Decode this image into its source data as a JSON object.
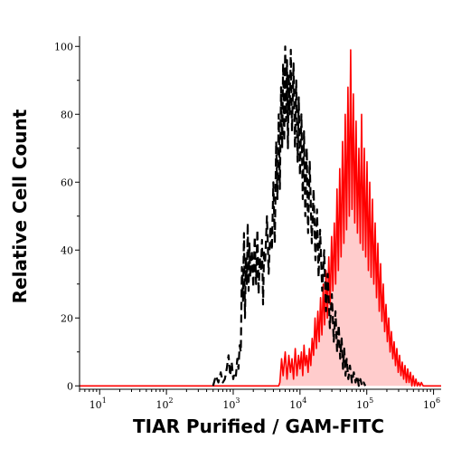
{
  "chart_data": {
    "type": "histogram-overlay",
    "xlabel": "TIAR Purified / GAM-FITC",
    "ylabel": "Relative Cell Count",
    "x_scale": "log",
    "xlim": [
      5,
      1300000
    ],
    "ylim": [
      -1,
      103
    ],
    "y_ticks": [
      0,
      20,
      40,
      60,
      80,
      100
    ],
    "x_ticks": [
      {
        "value": 10,
        "base": "10",
        "exp": "1"
      },
      {
        "value": 100,
        "base": "10",
        "exp": "2"
      },
      {
        "value": 1000,
        "base": "10",
        "exp": "3"
      },
      {
        "value": 10000,
        "base": "10",
        "exp": "4"
      },
      {
        "value": 100000,
        "base": "10",
        "exp": "5"
      },
      {
        "value": 1000000,
        "base": "10",
        "exp": "6"
      }
    ],
    "grid": false,
    "series": [
      {
        "style": "dashed",
        "color": "#000000",
        "fill": "none",
        "points": [
          [
            500,
            0
          ],
          [
            550,
            3
          ],
          [
            600,
            1
          ],
          [
            650,
            4
          ],
          [
            700,
            1
          ],
          [
            750,
            2
          ],
          [
            800,
            5
          ],
          [
            850,
            9
          ],
          [
            900,
            3
          ],
          [
            950,
            7
          ],
          [
            1000,
            2
          ],
          [
            1050,
            4
          ],
          [
            1100,
            3
          ],
          [
            1150,
            8
          ],
          [
            1200,
            5
          ],
          [
            1250,
            12
          ],
          [
            1300,
            10
          ],
          [
            1350,
            35
          ],
          [
            1400,
            25
          ],
          [
            1450,
            45
          ],
          [
            1500,
            20
          ],
          [
            1550,
            38
          ],
          [
            1600,
            30
          ],
          [
            1650,
            48
          ],
          [
            1700,
            28
          ],
          [
            1750,
            42
          ],
          [
            1800,
            32
          ],
          [
            1900,
            40
          ],
          [
            2000,
            29
          ],
          [
            2100,
            44
          ],
          [
            2200,
            30
          ],
          [
            2300,
            46
          ],
          [
            2400,
            27
          ],
          [
            2500,
            38
          ],
          [
            2600,
            34
          ],
          [
            2700,
            43
          ],
          [
            2800,
            24
          ],
          [
            2900,
            40
          ],
          [
            3000,
            36
          ],
          [
            3200,
            50
          ],
          [
            3400,
            33
          ],
          [
            3600,
            47
          ],
          [
            3800,
            40
          ],
          [
            4000,
            60
          ],
          [
            4200,
            42
          ],
          [
            4400,
            72
          ],
          [
            4600,
            55
          ],
          [
            4800,
            80
          ],
          [
            5000,
            58
          ],
          [
            5200,
            88
          ],
          [
            5400,
            70
          ],
          [
            5600,
            95
          ],
          [
            5800,
            72
          ],
          [
            6000,
            100
          ],
          [
            6200,
            78
          ],
          [
            6400,
            96
          ],
          [
            6600,
            70
          ],
          [
            6800,
            92
          ],
          [
            7000,
            80
          ],
          [
            7300,
            99
          ],
          [
            7600,
            75
          ],
          [
            8000,
            95
          ],
          [
            8400,
            70
          ],
          [
            8800,
            90
          ],
          [
            9200,
            66
          ],
          [
            9600,
            85
          ],
          [
            10000,
            62
          ],
          [
            10500,
            80
          ],
          [
            11000,
            55
          ],
          [
            11500,
            75
          ],
          [
            12000,
            50
          ],
          [
            12600,
            70
          ],
          [
            13200,
            45
          ],
          [
            14000,
            66
          ],
          [
            15000,
            42
          ],
          [
            16000,
            58
          ],
          [
            17000,
            37
          ],
          [
            18000,
            52
          ],
          [
            19000,
            32
          ],
          [
            20000,
            46
          ],
          [
            21500,
            28
          ],
          [
            23000,
            40
          ],
          [
            24500,
            22
          ],
          [
            26000,
            33
          ],
          [
            28000,
            17
          ],
          [
            30000,
            27
          ],
          [
            32000,
            13
          ],
          [
            34000,
            22
          ],
          [
            36000,
            10
          ],
          [
            38000,
            18
          ],
          [
            40000,
            8
          ],
          [
            42000,
            14
          ],
          [
            44000,
            5
          ],
          [
            46000,
            11
          ],
          [
            48000,
            3
          ],
          [
            50000,
            8
          ],
          [
            53000,
            2
          ],
          [
            56000,
            6
          ],
          [
            60000,
            1
          ],
          [
            64000,
            4
          ],
          [
            68000,
            1
          ],
          [
            72000,
            3
          ],
          [
            76000,
            0
          ],
          [
            80000,
            2
          ],
          [
            85000,
            0
          ],
          [
            90000,
            1
          ],
          [
            95000,
            0
          ]
        ]
      },
      {
        "style": "solid",
        "color": "#ff0000",
        "fill": "#ffcccc",
        "points": [
          [
            5,
            0
          ],
          [
            4800,
            0
          ],
          [
            5000,
            1
          ],
          [
            5300,
            8
          ],
          [
            5600,
            3
          ],
          [
            6000,
            10
          ],
          [
            6400,
            2
          ],
          [
            6800,
            9
          ],
          [
            7200,
            4
          ],
          [
            7600,
            8
          ],
          [
            8000,
            2
          ],
          [
            8500,
            11
          ],
          [
            9000,
            3
          ],
          [
            9500,
            9
          ],
          [
            10000,
            5
          ],
          [
            10500,
            10
          ],
          [
            11000,
            3
          ],
          [
            11500,
            12
          ],
          [
            12000,
            6
          ],
          [
            12600,
            9
          ],
          [
            13200,
            4
          ],
          [
            13800,
            11
          ],
          [
            14500,
            6
          ],
          [
            15200,
            14
          ],
          [
            16000,
            9
          ],
          [
            16800,
            20
          ],
          [
            17600,
            11
          ],
          [
            18500,
            22
          ],
          [
            19400,
            13
          ],
          [
            20300,
            26
          ],
          [
            21300,
            15
          ],
          [
            22300,
            30
          ],
          [
            23400,
            18
          ],
          [
            24500,
            34
          ],
          [
            25700,
            20
          ],
          [
            27000,
            38
          ],
          [
            28300,
            24
          ],
          [
            29700,
            44
          ],
          [
            31100,
            28
          ],
          [
            32600,
            48
          ],
          [
            34200,
            30
          ],
          [
            35900,
            58
          ],
          [
            37600,
            34
          ],
          [
            39400,
            64
          ],
          [
            41300,
            38
          ],
          [
            43300,
            72
          ],
          [
            45400,
            42
          ],
          [
            47600,
            80
          ],
          [
            49900,
            46
          ],
          [
            52300,
            88
          ],
          [
            54800,
            50
          ],
          [
            57400,
            99
          ],
          [
            60200,
            52
          ],
          [
            63100,
            86
          ],
          [
            66100,
            48
          ],
          [
            69300,
            78
          ],
          [
            72600,
            45
          ],
          [
            76100,
            70
          ],
          [
            79800,
            42
          ],
          [
            83600,
            80
          ],
          [
            87600,
            40
          ],
          [
            91800,
            70
          ],
          [
            96200,
            38
          ],
          [
            100800,
            66
          ],
          [
            105600,
            34
          ],
          [
            110700,
            60
          ],
          [
            116000,
            32
          ],
          [
            121600,
            55
          ],
          [
            127400,
            30
          ],
          [
            133500,
            48
          ],
          [
            139900,
            26
          ],
          [
            146600,
            42
          ],
          [
            153600,
            22
          ],
          [
            161000,
            36
          ],
          [
            168700,
            19
          ],
          [
            176800,
            30
          ],
          [
            185300,
            16
          ],
          [
            194200,
            24
          ],
          [
            203500,
            13
          ],
          [
            213300,
            20
          ],
          [
            223500,
            10
          ],
          [
            234200,
            16
          ],
          [
            245400,
            8
          ],
          [
            257200,
            13
          ],
          [
            269500,
            6
          ],
          [
            282400,
            11
          ],
          [
            296000,
            4
          ],
          [
            310200,
            9
          ],
          [
            325000,
            3
          ],
          [
            340600,
            7
          ],
          [
            357000,
            2
          ],
          [
            374100,
            6
          ],
          [
            392000,
            1
          ],
          [
            410800,
            5
          ],
          [
            430500,
            1
          ],
          [
            451200,
            4
          ],
          [
            472800,
            0
          ],
          [
            495500,
            3
          ],
          [
            519300,
            0
          ],
          [
            544200,
            2
          ],
          [
            570300,
            0
          ],
          [
            597700,
            1
          ],
          [
            626300,
            0
          ],
          [
            656400,
            1
          ],
          [
            700000,
            0
          ],
          [
            1300000,
            0
          ]
        ]
      }
    ]
  }
}
